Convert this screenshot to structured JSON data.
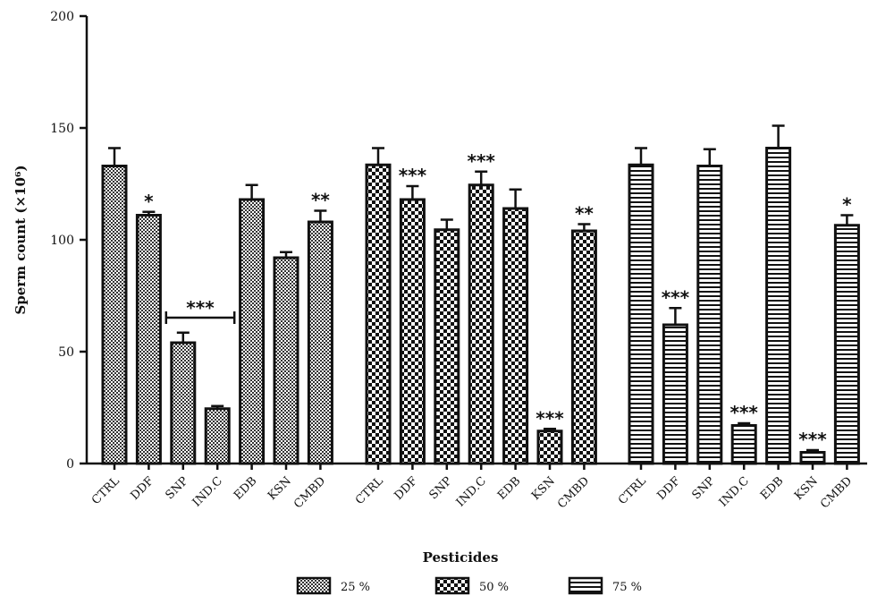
{
  "chart_data": {
    "type": "bar",
    "xlabel": "Pesticides",
    "ylabel": "Sperm count (×10⁶)",
    "ylim": [
      0,
      200
    ],
    "yticks": [
      0,
      50,
      100,
      150,
      200
    ],
    "grid": false,
    "legend_position": "bottom",
    "groups": [
      {
        "name": "25 %",
        "pattern": "fine-checker",
        "categories": [
          "CTRL",
          "DDF",
          "SNP",
          "IND.C",
          "EDB",
          "KSN",
          "CMBD"
        ],
        "values": [
          133,
          111,
          54,
          24.5,
          118,
          92,
          108
        ],
        "errors": [
          8,
          1.5,
          4.5,
          1.2,
          6.5,
          2.5,
          5
        ],
        "significance": [
          "",
          "*",
          "",
          "",
          "",
          "",
          "**"
        ],
        "bracket": {
          "from": "SNP",
          "to": "IND.C",
          "label": "***"
        }
      },
      {
        "name": "50 %",
        "pattern": "coarse-checker",
        "categories": [
          "CTRL",
          "DDF",
          "SNP",
          "IND.C",
          "EDB",
          "KSN",
          "CMBD"
        ],
        "values": [
          133.5,
          118,
          104.5,
          124.5,
          114,
          14.5,
          104
        ],
        "errors": [
          7.5,
          6,
          4.5,
          6,
          8.5,
          1,
          3
        ],
        "significance": [
          "",
          "***",
          "",
          "***",
          "",
          "***",
          "**"
        ]
      },
      {
        "name": "75 %",
        "pattern": "horizontal-stripes",
        "categories": [
          "CTRL",
          "DDF",
          "SNP",
          "IND.C",
          "EDB",
          "KSN",
          "CMBD"
        ],
        "values": [
          133.5,
          62,
          133,
          17,
          141,
          5,
          106.5
        ],
        "errors": [
          7.5,
          7.5,
          7.5,
          1,
          10,
          1,
          4.5
        ],
        "significance": [
          "",
          "***",
          "",
          "***",
          "",
          "***",
          "*"
        ]
      }
    ]
  }
}
